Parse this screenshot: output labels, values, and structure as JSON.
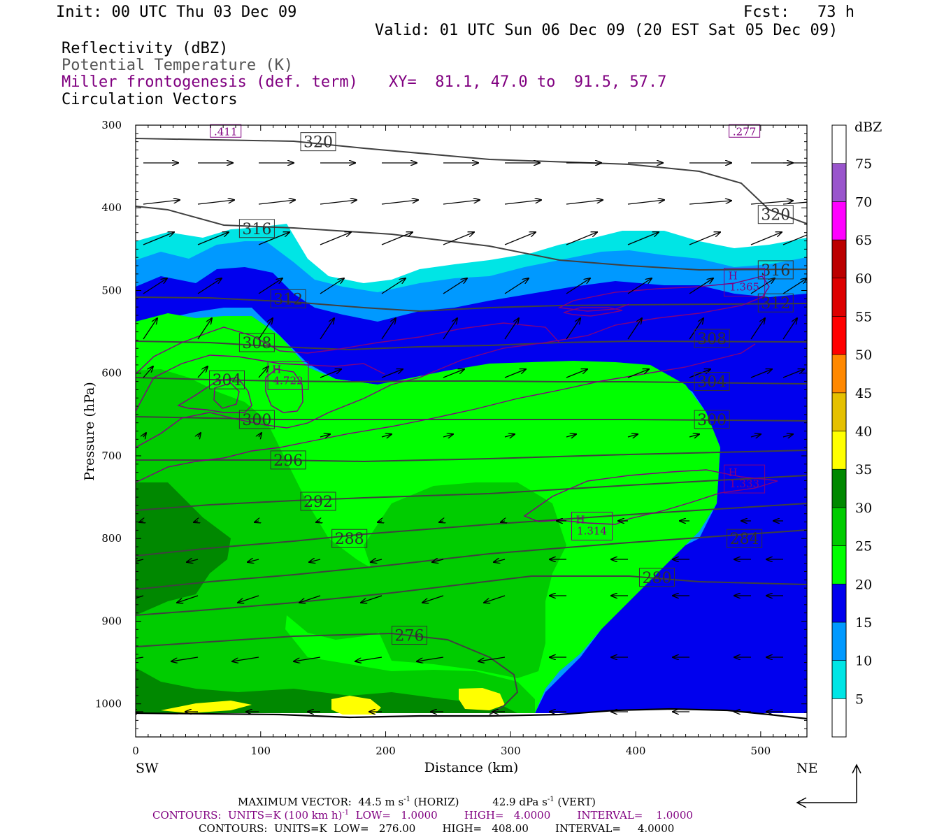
{
  "header": {
    "init": "Init: 00 UTC Thu 03 Dec 09",
    "fcst": "Fcst:   73 h",
    "valid": "Valid: 01 UTC Sun 06 Dec 09 (20 EST Sat 05 Dec 09)",
    "field1": "Reflectivity (dBZ)",
    "field2": "Potential Temperature (K)",
    "field3": "Miller frontogenesis (def. term)",
    "xy": "XY=  81.1, 47.0 to  91.5, 57.7",
    "field4": "Circulation Vectors"
  },
  "footer": {
    "max_vector_label": "MAXIMUM VECTOR:",
    "max_vector_horiz": "44.5 m s",
    "horiz_tag": "(HORIZ)",
    "max_vector_vert": "42.9 dPa s",
    "vert_tag": "(VERT)",
    "sup": "-1",
    "contours1": "CONTOURS:  UNITS=K (100 km h)",
    "contours1_rest": "  LOW=   1.0000        HIGH=   4.0000        INTERVAL=    1.0000",
    "contours2": "CONTOURS:  UNITS=K  LOW=   276.00        HIGH=   408.00        INTERVAL=     4.0000"
  },
  "colors": {
    "purple": "#800080",
    "theta_line": "#404040",
    "dbz": [
      "#ffffff",
      "#00e5e5",
      "#0099ff",
      "#0000ee",
      "#00ff00",
      "#00cc00",
      "#008800",
      "#ffff00",
      "#e5c000",
      "#ff8800",
      "#ff0000",
      "#dd0000",
      "#bb0000",
      "#ff00ff",
      "#9955cc",
      "#ffffff"
    ]
  },
  "chart_data": {
    "type": "cross-section",
    "xlabel": "Distance (km)",
    "ylabel": "Pressure (hPa)",
    "x_left_label": "SW",
    "x_right_label": "NE",
    "xlim": [
      0,
      537
    ],
    "ylim": [
      1040,
      300
    ],
    "x_ticks": [
      0,
      100,
      200,
      300,
      400,
      500
    ],
    "y_ticks": [
      300,
      400,
      500,
      600,
      700,
      800,
      900,
      1000
    ],
    "colorbar": {
      "unit": "dBZ",
      "levels": [
        5,
        10,
        15,
        20,
        25,
        30,
        35,
        40,
        45,
        50,
        55,
        60,
        65,
        70,
        75
      ]
    },
    "theta_labels": [
      {
        "value": "320",
        "x": 146,
        "p": 320
      },
      {
        "value": "320",
        "x": 512,
        "p": 408
      },
      {
        "value": "316",
        "x": 97,
        "p": 425
      },
      {
        "value": "316",
        "x": 512,
        "p": 475
      },
      {
        "value": "312",
        "x": 122,
        "p": 510
      },
      {
        "value": "312",
        "x": 512,
        "p": 515
      },
      {
        "value": "308",
        "x": 97,
        "p": 563
      },
      {
        "value": "308",
        "x": 461,
        "p": 558
      },
      {
        "value": "304",
        "x": 73,
        "p": 608
      },
      {
        "value": "304",
        "x": 461,
        "p": 610
      },
      {
        "value": "300",
        "x": 97,
        "p": 656
      },
      {
        "value": "300",
        "x": 461,
        "p": 656
      },
      {
        "value": "296",
        "x": 122,
        "p": 705
      },
      {
        "value": "292",
        "x": 146,
        "p": 755
      },
      {
        "value": "288",
        "x": 171,
        "p": 800
      },
      {
        "value": "284",
        "x": 487,
        "p": 800
      },
      {
        "value": "280",
        "x": 417,
        "p": 847
      },
      {
        "value": "276",
        "x": 219,
        "p": 917
      }
    ],
    "frontogenesis_labels": [
      {
        "value": ".411",
        "x": 72,
        "p": 307
      },
      {
        "value": ".277",
        "x": 487,
        "p": 307
      },
      {
        "value": "H\n4.722",
        "x": 122,
        "p": 603
      },
      {
        "value": "H\n1.365",
        "x": 487,
        "p": 490
      },
      {
        "value": "H\n1.333",
        "x": 487,
        "p": 728
      },
      {
        "value": "H\n1.314",
        "x": 365,
        "p": 785
      }
    ]
  }
}
